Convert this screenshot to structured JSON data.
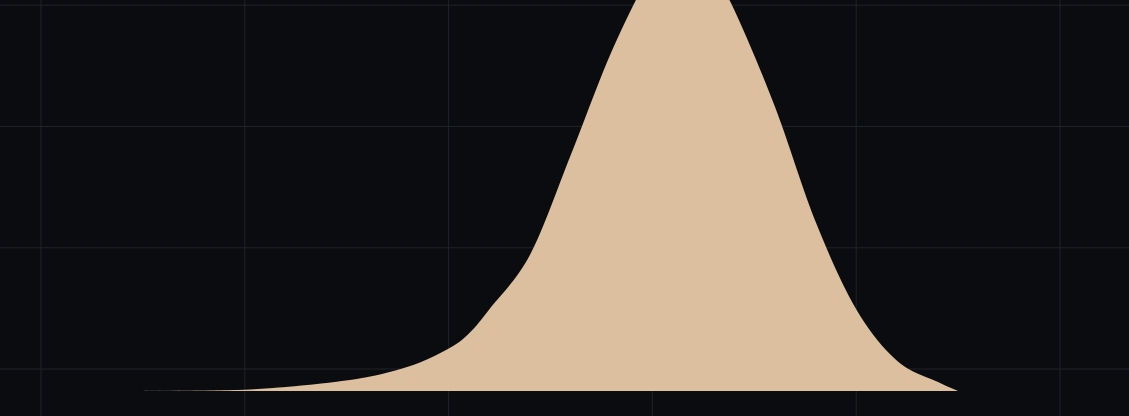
{
  "chart_data": {
    "type": "area",
    "title": "",
    "xlabel": "",
    "ylabel": "",
    "grid": true,
    "legend": "none",
    "colors": {
      "background": "#0b0c10",
      "grid": "#1f2228",
      "fill": "#dcbf9f"
    },
    "xlim": [
      0,
      5.4
    ],
    "ylim": [
      0,
      1.6
    ],
    "x_gridlines": [
      0,
      1,
      2,
      3,
      4,
      5
    ],
    "y_gridlines": [
      0,
      0.4,
      0.8,
      1.2,
      1.6
    ],
    "series": [
      {
        "x": [
          0.5,
          1.0,
          1.5,
          1.8,
          2.0,
          2.1,
          2.2,
          2.4,
          2.6,
          2.8,
          3.0,
          3.1,
          3.2,
          3.3,
          3.4,
          3.6,
          3.8,
          4.0,
          4.2,
          4.4,
          4.5
        ],
        "y": [
          0.0,
          0.004,
          0.035,
          0.08,
          0.14,
          0.19,
          0.27,
          0.45,
          0.78,
          1.12,
          1.39,
          1.45,
          1.44,
          1.37,
          1.26,
          0.94,
          0.56,
          0.27,
          0.1,
          0.03,
          0.0
        ]
      }
    ]
  }
}
